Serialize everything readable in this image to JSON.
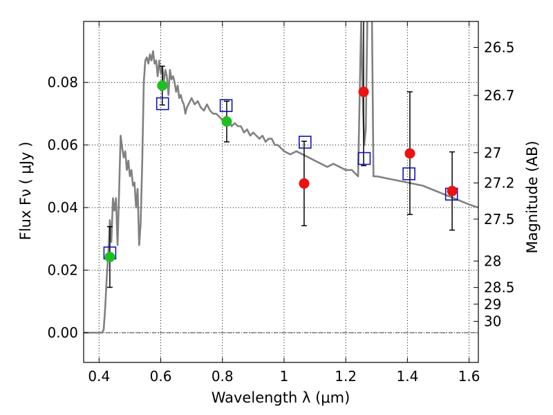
{
  "chart_data": {
    "type": "scatter",
    "xlabel": "Wavelength  λ (μm)",
    "ylabel": "Flux  Fν  ( μJy )",
    "ylabel_right": "Magnitude (AB)",
    "xlim": [
      0.35,
      1.63
    ],
    "ylim": [
      -0.0095,
      0.0995
    ],
    "grid": true,
    "x_ticks": [
      0.4,
      0.6,
      0.8,
      1.0,
      1.2,
      1.4,
      1.6
    ],
    "x_tick_labels": [
      "0.4",
      "0.6",
      "0.8",
      "1",
      "1.2",
      "1.4",
      "1.6"
    ],
    "y_ticks": [
      0.0,
      0.02,
      0.04,
      0.06,
      0.08
    ],
    "y_tick_labels": [
      "0.00",
      "0.02",
      "0.04",
      "0.06",
      "0.08"
    ],
    "right_ticks": [
      {
        "label": "26.5",
        "mag": 26.5
      },
      {
        "label": "26.7",
        "mag": 26.7
      },
      {
        "label": "27",
        "mag": 27.0
      },
      {
        "label": "27.2",
        "mag": 27.2
      },
      {
        "label": "27.5",
        "mag": 27.5
      },
      {
        "label": "28",
        "mag": 28.0
      },
      {
        "label": "28.5",
        "mag": 28.5
      },
      {
        "label": "29",
        "mag": 29.0
      },
      {
        "label": "30",
        "mag": 30.0
      }
    ],
    "colors": {
      "model": "#808080",
      "green": "#1fbf1f",
      "red": "#ee1111",
      "squares": "#1010c0",
      "errorbars": "#000000"
    },
    "model_spectrum": {
      "x": [
        0.35,
        0.41,
        0.415,
        0.42,
        0.425,
        0.43,
        0.435,
        0.44,
        0.445,
        0.45,
        0.455,
        0.46,
        0.465,
        0.47,
        0.475,
        0.48,
        0.485,
        0.49,
        0.495,
        0.5,
        0.505,
        0.51,
        0.515,
        0.52,
        0.525,
        0.53,
        0.535,
        0.54,
        0.545,
        0.55,
        0.555,
        0.56,
        0.565,
        0.57,
        0.575,
        0.58,
        0.585,
        0.59,
        0.595,
        0.6,
        0.605,
        0.61,
        0.615,
        0.62,
        0.625,
        0.63,
        0.635,
        0.64,
        0.645,
        0.65,
        0.655,
        0.66,
        0.665,
        0.67,
        0.675,
        0.68,
        0.685,
        0.69,
        0.7,
        0.71,
        0.72,
        0.73,
        0.74,
        0.75,
        0.76,
        0.77,
        0.78,
        0.79,
        0.8,
        0.81,
        0.82,
        0.83,
        0.84,
        0.85,
        0.86,
        0.87,
        0.88,
        0.89,
        0.9,
        0.91,
        0.92,
        0.93,
        0.94,
        0.95,
        0.96,
        0.97,
        0.98,
        0.99,
        1.0,
        1.02,
        1.04,
        1.06,
        1.08,
        1.1,
        1.12,
        1.14,
        1.16,
        1.18,
        1.2,
        1.22,
        1.24,
        1.25,
        1.255,
        1.26,
        1.265,
        1.27,
        1.275,
        1.28,
        1.285,
        1.29,
        1.3,
        1.35,
        1.4,
        1.45,
        1.5,
        1.55,
        1.6,
        1.63
      ],
      "y": [
        0.0,
        0.0,
        0.001,
        0.008,
        0.018,
        0.025,
        0.036,
        0.029,
        0.043,
        0.039,
        0.043,
        0.028,
        0.045,
        0.063,
        0.059,
        0.056,
        0.058,
        0.052,
        0.055,
        0.05,
        0.052,
        0.047,
        0.048,
        0.04,
        0.046,
        0.028,
        0.035,
        0.055,
        0.08,
        0.087,
        0.088,
        0.086,
        0.089,
        0.087,
        0.09,
        0.086,
        0.087,
        0.082,
        0.087,
        0.083,
        0.085,
        0.08,
        0.084,
        0.082,
        0.076,
        0.084,
        0.081,
        0.082,
        0.08,
        0.077,
        0.079,
        0.075,
        0.076,
        0.074,
        0.073,
        0.07,
        0.072,
        0.073,
        0.075,
        0.073,
        0.074,
        0.072,
        0.071,
        0.073,
        0.071,
        0.07,
        0.07,
        0.069,
        0.068,
        0.069,
        0.068,
        0.066,
        0.067,
        0.066,
        0.066,
        0.064,
        0.065,
        0.063,
        0.064,
        0.063,
        0.062,
        0.063,
        0.061,
        0.062,
        0.062,
        0.06,
        0.06,
        0.059,
        0.058,
        0.057,
        0.058,
        0.057,
        0.056,
        0.055,
        0.054,
        0.053,
        0.054,
        0.053,
        0.052,
        0.052,
        0.05,
        0.1,
        0.075,
        0.06,
        0.065,
        0.1,
        0.12,
        0.12,
        0.1,
        0.05,
        0.05,
        0.049,
        0.048,
        0.047,
        0.045,
        0.043,
        0.041,
        0.04
      ]
    },
    "photometry_green": [
      {
        "x": 0.435,
        "y": 0.0242,
        "yerr_low": 0.0097,
        "yerr_high": 0.0097
      },
      {
        "x": 0.605,
        "y": 0.079,
        "yerr_low": 0.0062,
        "yerr_high": 0.0062
      },
      {
        "x": 0.814,
        "y": 0.0675,
        "yerr_low": 0.0065,
        "yerr_high": 0.0065
      }
    ],
    "photometry_red": [
      {
        "x": 1.065,
        "y": 0.0477,
        "yerr_low": 0.0135,
        "yerr_high": 0.0135
      },
      {
        "x": 1.258,
        "y": 0.077,
        "yerr_low": 0.0236,
        "yerr_high": 0.023
      },
      {
        "x": 1.408,
        "y": 0.0573,
        "yerr_low": 0.0195,
        "yerr_high": 0.0197
      },
      {
        "x": 1.545,
        "y": 0.0453,
        "yerr_low": 0.0125,
        "yerr_high": 0.0125
      }
    ],
    "model_photometry_squares": [
      {
        "x": 0.435,
        "y": 0.0255
      },
      {
        "x": 0.606,
        "y": 0.0732
      },
      {
        "x": 0.812,
        "y": 0.0726
      },
      {
        "x": 1.068,
        "y": 0.0609
      },
      {
        "x": 1.26,
        "y": 0.0557
      },
      {
        "x": 1.405,
        "y": 0.0508
      },
      {
        "x": 1.543,
        "y": 0.0443
      }
    ]
  }
}
